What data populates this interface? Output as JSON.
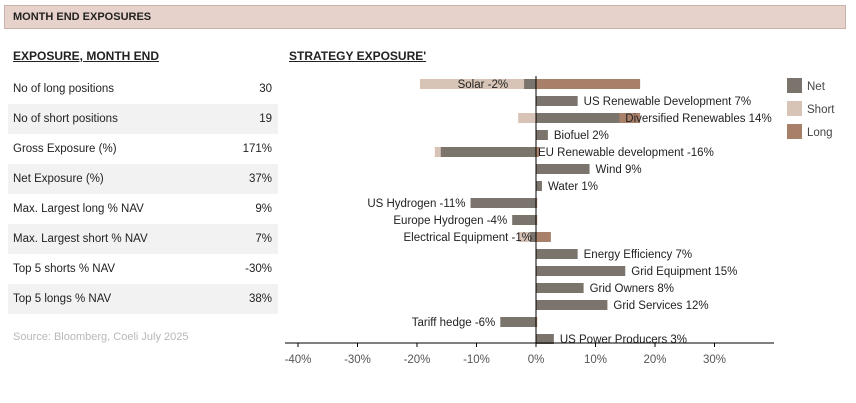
{
  "header": {
    "title": "MONTH END EXPOSURES"
  },
  "left": {
    "title": "EXPOSURE, MONTH END",
    "rows": [
      {
        "label": "No of long positions",
        "value": "30"
      },
      {
        "label": "No of short positions",
        "value": "19"
      },
      {
        "label": "Gross Exposure (%)",
        "value": "171%"
      },
      {
        "label": "Net Exposure (%)",
        "value": "37%"
      },
      {
        "label": "Max. Largest long % NAV",
        "value": "9%"
      },
      {
        "label": "Max. Largest short % NAV",
        "value": "7%"
      },
      {
        "label": "Top 5 shorts % NAV",
        "value": "-30%"
      },
      {
        "label": "Top 5 longs % NAV",
        "value": "38%"
      }
    ],
    "source": "Source: Bloomberg, Coeli July 2025"
  },
  "chart_data": {
    "type": "bar",
    "title": "STRATEGY EXPOSURE'",
    "orientation": "horizontal",
    "categories": [
      "Solar",
      "US Renewable Development",
      "Diversified Renewables",
      "Biofuel",
      "EU Renewable development",
      "Wind",
      "Water",
      "US Hydrogen",
      "Europe Hydrogen",
      "Electrical Equipment",
      "Energy Efficiency",
      "Grid Equipment",
      "Grid Owners",
      "Grid Services",
      "Tariff hedge",
      "US Power Producers"
    ],
    "series": [
      {
        "name": "Net",
        "color": "#7a746c",
        "values": [
          -2,
          7,
          14,
          2,
          -16,
          9,
          1,
          -11,
          -4,
          -1,
          7,
          15,
          8,
          12,
          -6,
          3
        ]
      },
      {
        "name": "Short",
        "color": "#d8c4b6",
        "values": [
          -19.5,
          0,
          -3,
          0,
          -17,
          0,
          0,
          0,
          0,
          -3,
          0,
          0,
          0,
          0,
          0,
          0
        ]
      },
      {
        "name": "Long",
        "color": "#a8806a",
        "values": [
          17.5,
          0,
          17.5,
          0,
          0.5,
          0,
          0,
          0.2,
          0.2,
          2.5,
          0,
          0,
          0,
          0,
          0.2,
          0
        ]
      }
    ],
    "labels": [
      "Solar  -2%",
      "US Renewable Development  7%",
      "Diversified Renewables  14%",
      "Biofuel  2%",
      "EU Renewable development  -16%",
      "Wind  9%",
      "Water  1%",
      "US Hydrogen  -11%",
      "Europe Hydrogen  -4%",
      "Electrical Equipment  -1%",
      "Energy Efficiency  7%",
      "Grid Equipment  15%",
      "Grid Owners  8%",
      "Grid Services  12%",
      "Tariff hedge  -6%",
      "US Power Producers  3%"
    ],
    "xticks": [
      "-40%",
      "-30%",
      "-20%",
      "-10%",
      "0%",
      "10%",
      "20%",
      "30%"
    ],
    "xlim": [
      -41,
      40
    ],
    "legend": "right"
  }
}
